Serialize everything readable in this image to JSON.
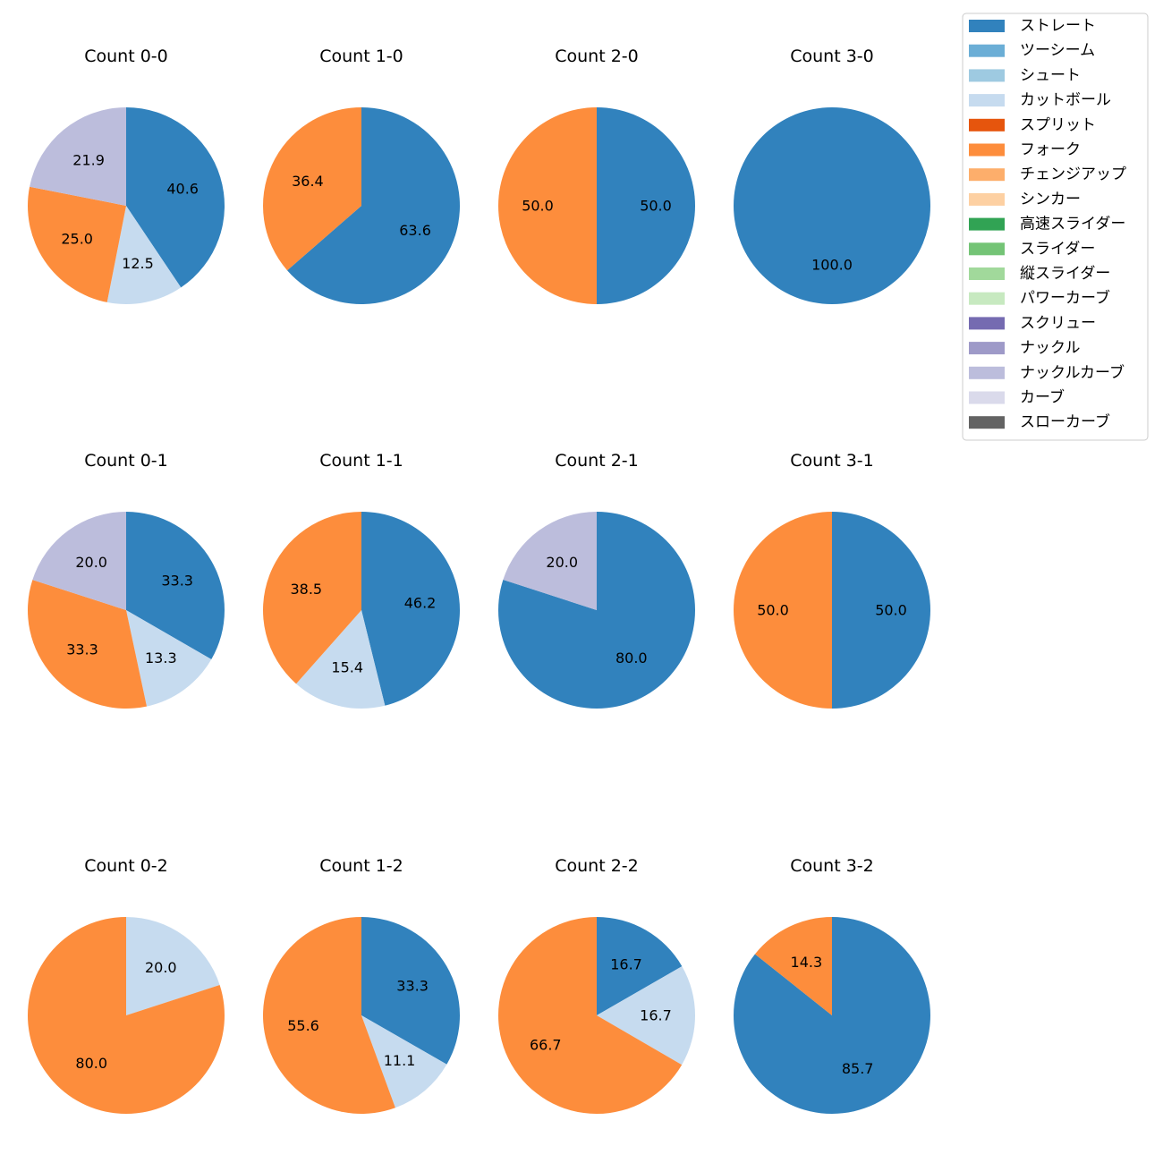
{
  "legend": {
    "items": [
      {
        "label": "ストレート",
        "color": "#3182bd"
      },
      {
        "label": "ツーシーム",
        "color": "#6baed6"
      },
      {
        "label": "シュート",
        "color": "#9ecae1"
      },
      {
        "label": "カットボール",
        "color": "#c6dbef"
      },
      {
        "label": "スプリット",
        "color": "#e6550d"
      },
      {
        "label": "フォーク",
        "color": "#fd8d3c"
      },
      {
        "label": "チェンジアップ",
        "color": "#fdae6b"
      },
      {
        "label": "シンカー",
        "color": "#fdd0a2"
      },
      {
        "label": "高速スライダー",
        "color": "#31a354"
      },
      {
        "label": "スライダー",
        "color": "#74c476"
      },
      {
        "label": "縦スライダー",
        "color": "#a1d99b"
      },
      {
        "label": "パワーカーブ",
        "color": "#c7e9c0"
      },
      {
        "label": "スクリュー",
        "color": "#756bb1"
      },
      {
        "label": "ナックル",
        "color": "#9e9ac8"
      },
      {
        "label": "ナックルカーブ",
        "color": "#bcbddc"
      },
      {
        "label": "カーブ",
        "color": "#dadaeb"
      },
      {
        "label": "スローカーブ",
        "color": "#636363"
      }
    ]
  },
  "chart_data": [
    {
      "type": "pie",
      "title": "Count 0-0",
      "slices": [
        {
          "name": "ストレート",
          "value": 40.6,
          "label": "40.6"
        },
        {
          "name": "カットボール",
          "value": 12.5,
          "label": "12.5"
        },
        {
          "name": "フォーク",
          "value": 25.0,
          "label": "25.0"
        },
        {
          "name": "ナックルカーブ",
          "value": 21.9,
          "label": "21.9"
        }
      ]
    },
    {
      "type": "pie",
      "title": "Count 1-0",
      "slices": [
        {
          "name": "ストレート",
          "value": 63.6,
          "label": "63.6"
        },
        {
          "name": "フォーク",
          "value": 36.4,
          "label": "36.4"
        }
      ]
    },
    {
      "type": "pie",
      "title": "Count 2-0",
      "slices": [
        {
          "name": "ストレート",
          "value": 50.0,
          "label": "50.0"
        },
        {
          "name": "フォーク",
          "value": 50.0,
          "label": "50.0"
        }
      ]
    },
    {
      "type": "pie",
      "title": "Count 3-0",
      "slices": [
        {
          "name": "ストレート",
          "value": 100.0,
          "label": "100.0"
        }
      ]
    },
    {
      "type": "pie",
      "title": "Count 0-1",
      "slices": [
        {
          "name": "ストレート",
          "value": 33.3,
          "label": "33.3"
        },
        {
          "name": "カットボール",
          "value": 13.3,
          "label": "13.3"
        },
        {
          "name": "フォーク",
          "value": 33.3,
          "label": "33.3"
        },
        {
          "name": "ナックルカーブ",
          "value": 20.0,
          "label": "20.0"
        }
      ]
    },
    {
      "type": "pie",
      "title": "Count 1-1",
      "slices": [
        {
          "name": "ストレート",
          "value": 46.2,
          "label": "46.2"
        },
        {
          "name": "カットボール",
          "value": 15.4,
          "label": "15.4"
        },
        {
          "name": "フォーク",
          "value": 38.5,
          "label": "38.5"
        }
      ]
    },
    {
      "type": "pie",
      "title": "Count 2-1",
      "slices": [
        {
          "name": "ストレート",
          "value": 80.0,
          "label": "80.0"
        },
        {
          "name": "ナックルカーブ",
          "value": 20.0,
          "label": "20.0"
        }
      ]
    },
    {
      "type": "pie",
      "title": "Count 3-1",
      "slices": [
        {
          "name": "ストレート",
          "value": 50.0,
          "label": "50.0"
        },
        {
          "name": "フォーク",
          "value": 50.0,
          "label": "50.0"
        }
      ]
    },
    {
      "type": "pie",
      "title": "Count 0-2",
      "slices": [
        {
          "name": "カットボール",
          "value": 20.0,
          "label": "20.0"
        },
        {
          "name": "フォーク",
          "value": 80.0,
          "label": "80.0"
        }
      ]
    },
    {
      "type": "pie",
      "title": "Count 1-2",
      "slices": [
        {
          "name": "ストレート",
          "value": 33.3,
          "label": "33.3"
        },
        {
          "name": "カットボール",
          "value": 11.1,
          "label": "11.1"
        },
        {
          "name": "フォーク",
          "value": 55.6,
          "label": "55.6"
        }
      ]
    },
    {
      "type": "pie",
      "title": "Count 2-2",
      "slices": [
        {
          "name": "ストレート",
          "value": 16.7,
          "label": "16.7"
        },
        {
          "name": "カットボール",
          "value": 16.7,
          "label": "16.7"
        },
        {
          "name": "フォーク",
          "value": 66.7,
          "label": "66.7"
        }
      ]
    },
    {
      "type": "pie",
      "title": "Count 3-2",
      "slices": [
        {
          "name": "ストレート",
          "value": 85.7,
          "label": "85.7"
        },
        {
          "name": "フォーク",
          "value": 14.3,
          "label": "14.3"
        }
      ]
    }
  ]
}
